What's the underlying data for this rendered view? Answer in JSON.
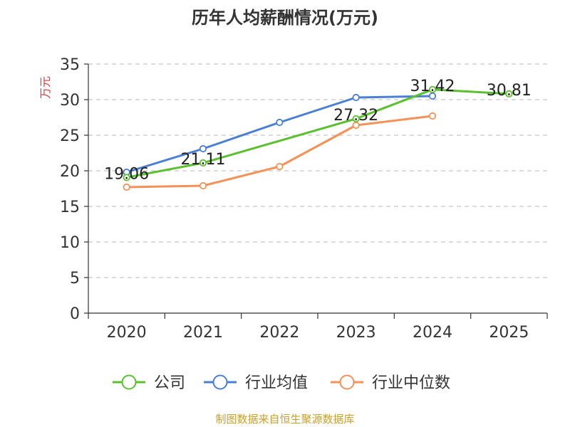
{
  "chart_data": {
    "type": "line",
    "title": "历年人均薪酬情况(万元)",
    "ylabel": "万元",
    "xlabel": "",
    "ylim": [
      0,
      35
    ],
    "yticks": [
      0,
      5,
      10,
      15,
      20,
      25,
      30,
      35
    ],
    "categories": [
      "2020",
      "2021",
      "2022",
      "2023",
      "2024",
      "2025"
    ],
    "grid": true,
    "legend_position": "bottom",
    "series": [
      {
        "name": "公司",
        "color": "#5ac12e",
        "values": [
          19.06,
          21.11,
          null,
          27.32,
          31.42,
          30.81
        ],
        "labels": [
          "19.06",
          "21.11",
          "",
          "27.32",
          "31.42",
          "30.81"
        ]
      },
      {
        "name": "行业均值",
        "color": "#4a7fd6",
        "values": [
          19.8,
          23.1,
          26.8,
          30.3,
          30.5,
          null
        ]
      },
      {
        "name": "行业中位数",
        "color": "#f59156",
        "values": [
          17.7,
          17.9,
          20.6,
          26.4,
          27.7,
          null
        ]
      }
    ]
  },
  "source": {
    "text": "制图数据来自恒生聚源数据库",
    "color": "#c8a02a"
  },
  "ylabel_color": "#e03a3a"
}
